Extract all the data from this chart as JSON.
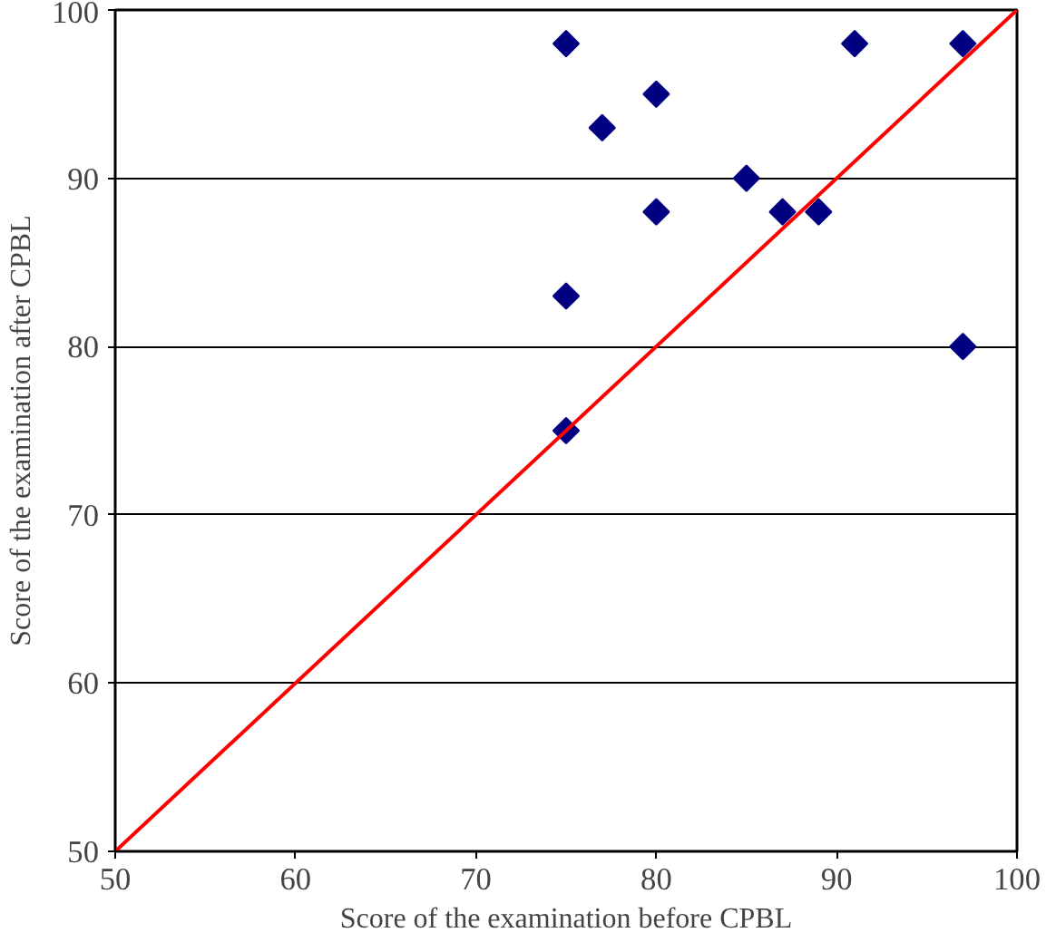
{
  "chart_data": {
    "type": "scatter",
    "xlabel": "Score of the examination before CPBL",
    "ylabel": "Score of the examination after CPBL",
    "xlim": [
      50,
      100
    ],
    "ylim": [
      50,
      100
    ],
    "xticks": [
      50,
      60,
      70,
      80,
      90,
      100
    ],
    "yticks": [
      50,
      60,
      70,
      80,
      90,
      100
    ],
    "grid": "y",
    "series": [
      {
        "marker": "diamond",
        "color": "#000080",
        "x": [
          75,
          77,
          80,
          80,
          75,
          75,
          85,
          87,
          89,
          91,
          97,
          97
        ],
        "values": [
          98,
          93,
          95,
          88,
          83,
          75,
          90,
          88,
          88,
          98,
          98,
          80
        ]
      },
      {
        "type": "line",
        "color": "#ff0000",
        "x": [
          50,
          100
        ],
        "values": [
          50,
          100
        ]
      }
    ]
  }
}
